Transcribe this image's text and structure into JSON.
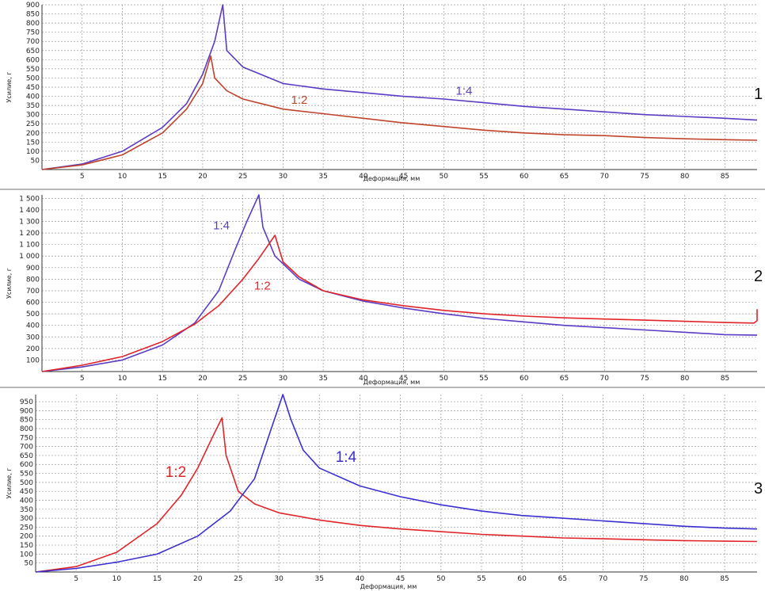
{
  "chart_data": [
    {
      "type": "line",
      "panel_number": "1",
      "xlabel": "Деформация, мм",
      "ylabel": "Усилие, г",
      "xlim": [
        0,
        89
      ],
      "ylim": [
        0,
        900
      ],
      "x_ticks": [
        5,
        10,
        15,
        20,
        25,
        30,
        35,
        40,
        45,
        50,
        55,
        60,
        65,
        70,
        75,
        80,
        85
      ],
      "y_ticks": [
        50,
        100,
        150,
        200,
        250,
        300,
        350,
        400,
        450,
        500,
        550,
        600,
        650,
        700,
        750,
        800,
        850,
        900
      ],
      "y_tick_labels": [
        "50",
        "100",
        "150",
        "200",
        "250",
        "300",
        "350",
        "400",
        "450",
        "500",
        "550",
        "600",
        "650",
        "700",
        "750",
        "800",
        "850",
        "900"
      ],
      "grid": true,
      "series": [
        {
          "name": "1:4",
          "color": "#5b3cc4",
          "label_at": [
            51.5,
            408
          ],
          "label_size": 15,
          "points": [
            [
              0,
              0
            ],
            [
              5,
              30
            ],
            [
              10,
              100
            ],
            [
              15,
              230
            ],
            [
              18,
              360
            ],
            [
              20,
              520
            ],
            [
              21.5,
              700
            ],
            [
              22.5,
              900
            ],
            [
              23,
              650
            ],
            [
              25,
              560
            ],
            [
              30,
              470
            ],
            [
              35,
              440
            ],
            [
              40,
              420
            ],
            [
              45,
              400
            ],
            [
              50,
              385
            ],
            [
              55,
              365
            ],
            [
              60,
              345
            ],
            [
              65,
              330
            ],
            [
              70,
              315
            ],
            [
              75,
              300
            ],
            [
              80,
              290
            ],
            [
              85,
              280
            ],
            [
              89,
              270
            ]
          ]
        },
        {
          "name": "1:2",
          "color": "#c0442c",
          "label_at": [
            31,
            360
          ],
          "label_size": 15,
          "points": [
            [
              0,
              0
            ],
            [
              5,
              25
            ],
            [
              10,
              80
            ],
            [
              15,
              200
            ],
            [
              18,
              330
            ],
            [
              20,
              470
            ],
            [
              21,
              620
            ],
            [
              21.5,
              500
            ],
            [
              23,
              430
            ],
            [
              25,
              385
            ],
            [
              30,
              330
            ],
            [
              35,
              305
            ],
            [
              40,
              280
            ],
            [
              45,
              255
            ],
            [
              50,
              235
            ],
            [
              55,
              215
            ],
            [
              60,
              200
            ],
            [
              65,
              190
            ],
            [
              70,
              185
            ],
            [
              75,
              175
            ],
            [
              80,
              168
            ],
            [
              85,
              163
            ],
            [
              89,
              160
            ]
          ]
        }
      ]
    },
    {
      "type": "line",
      "panel_number": "2",
      "xlabel": "Деформация, мм",
      "ylabel": "Усилие, г",
      "xlim": [
        0,
        89
      ],
      "ylim": [
        0,
        1530
      ],
      "x_ticks": [
        5,
        10,
        15,
        20,
        25,
        30,
        35,
        40,
        45,
        50,
        55,
        60,
        65,
        70,
        75,
        80,
        85
      ],
      "y_ticks": [
        100,
        200,
        300,
        400,
        500,
        600,
        700,
        800,
        900,
        1000,
        1100,
        1200,
        1300,
        1400,
        1500
      ],
      "y_tick_labels": [
        "100",
        "200",
        "300",
        "400",
        "500",
        "600",
        "700",
        "800",
        "900",
        "1 000",
        "1 100",
        "1 200",
        "1 300",
        "1 400",
        "1 500"
      ],
      "grid": true,
      "series": [
        {
          "name": "1:4",
          "color": "#5b3cc4",
          "label_at": [
            21.3,
            1230
          ],
          "label_size": 15,
          "points": [
            [
              0,
              0
            ],
            [
              5,
              40
            ],
            [
              10,
              100
            ],
            [
              15,
              230
            ],
            [
              19,
              420
            ],
            [
              22,
              700
            ],
            [
              24,
              1050
            ],
            [
              25.5,
              1300
            ],
            [
              27,
              1530
            ],
            [
              27.5,
              1250
            ],
            [
              29,
              1000
            ],
            [
              32,
              800
            ],
            [
              35,
              700
            ],
            [
              40,
              610
            ],
            [
              45,
              550
            ],
            [
              50,
              500
            ],
            [
              55,
              460
            ],
            [
              60,
              430
            ],
            [
              65,
              400
            ],
            [
              70,
              380
            ],
            [
              75,
              360
            ],
            [
              80,
              340
            ],
            [
              85,
              320
            ],
            [
              89,
              315
            ]
          ]
        },
        {
          "name": "1:2",
          "color": "#e0252a",
          "label_at": [
            26.4,
            710
          ],
          "label_size": 15,
          "points": [
            [
              0,
              0
            ],
            [
              5,
              55
            ],
            [
              10,
              130
            ],
            [
              15,
              260
            ],
            [
              19,
              410
            ],
            [
              22,
              570
            ],
            [
              25,
              800
            ],
            [
              27,
              980
            ],
            [
              29,
              1180
            ],
            [
              30,
              950
            ],
            [
              32,
              820
            ],
            [
              35,
              700
            ],
            [
              40,
              620
            ],
            [
              45,
              570
            ],
            [
              50,
              530
            ],
            [
              55,
              500
            ],
            [
              60,
              480
            ],
            [
              65,
              465
            ],
            [
              70,
              455
            ],
            [
              75,
              445
            ],
            [
              80,
              435
            ],
            [
              85,
              425
            ],
            [
              88.6,
              420
            ],
            [
              89,
              440
            ],
            [
              89,
              540
            ]
          ]
        }
      ]
    },
    {
      "type": "line",
      "panel_number": "3",
      "xlabel": "Деформация, мм",
      "ylabel": "Усилие, г",
      "xlim": [
        0,
        89
      ],
      "ylim": [
        0,
        990
      ],
      "x_ticks": [
        5,
        10,
        15,
        20,
        25,
        30,
        35,
        40,
        45,
        50,
        55,
        60,
        65,
        70,
        75,
        80,
        85
      ],
      "y_ticks": [
        50,
        100,
        150,
        200,
        250,
        300,
        350,
        400,
        450,
        500,
        550,
        600,
        650,
        700,
        750,
        800,
        850,
        900,
        950
      ],
      "y_tick_labels": [
        "50",
        "100",
        "150",
        "200",
        "250",
        "300",
        "350",
        "400",
        "450",
        "500",
        "550",
        "600",
        "650",
        "700",
        "750",
        "800",
        "850",
        "900",
        "950"
      ],
      "grid": true,
      "series": [
        {
          "name": "1:2",
          "color": "#e0252a",
          "label_at": [
            16,
            530
          ],
          "label_size": 19,
          "points": [
            [
              0,
              0
            ],
            [
              5,
              30
            ],
            [
              10,
              110
            ],
            [
              15,
              270
            ],
            [
              18,
              430
            ],
            [
              20,
              580
            ],
            [
              22,
              770
            ],
            [
              23,
              860
            ],
            [
              23.5,
              650
            ],
            [
              25,
              450
            ],
            [
              27,
              380
            ],
            [
              30,
              330
            ],
            [
              35,
              290
            ],
            [
              40,
              260
            ],
            [
              45,
              240
            ],
            [
              50,
              225
            ],
            [
              55,
              210
            ],
            [
              60,
              200
            ],
            [
              65,
              190
            ],
            [
              70,
              185
            ],
            [
              75,
              180
            ],
            [
              80,
              175
            ],
            [
              85,
              172
            ],
            [
              89,
              170
            ]
          ]
        },
        {
          "name": "1:4",
          "color": "#3b2fd0",
          "label_at": [
            37,
            615
          ],
          "label_size": 19,
          "points": [
            [
              0,
              0
            ],
            [
              5,
              20
            ],
            [
              10,
              55
            ],
            [
              15,
              100
            ],
            [
              20,
              200
            ],
            [
              24,
              340
            ],
            [
              27,
              520
            ],
            [
              29,
              790
            ],
            [
              30.5,
              990
            ],
            [
              31.5,
              850
            ],
            [
              33,
              680
            ],
            [
              35,
              580
            ],
            [
              40,
              480
            ],
            [
              45,
              420
            ],
            [
              50,
              375
            ],
            [
              55,
              340
            ],
            [
              60,
              315
            ],
            [
              65,
              300
            ],
            [
              70,
              285
            ],
            [
              75,
              270
            ],
            [
              80,
              255
            ],
            [
              85,
              245
            ],
            [
              89,
              240
            ]
          ]
        }
      ]
    }
  ]
}
